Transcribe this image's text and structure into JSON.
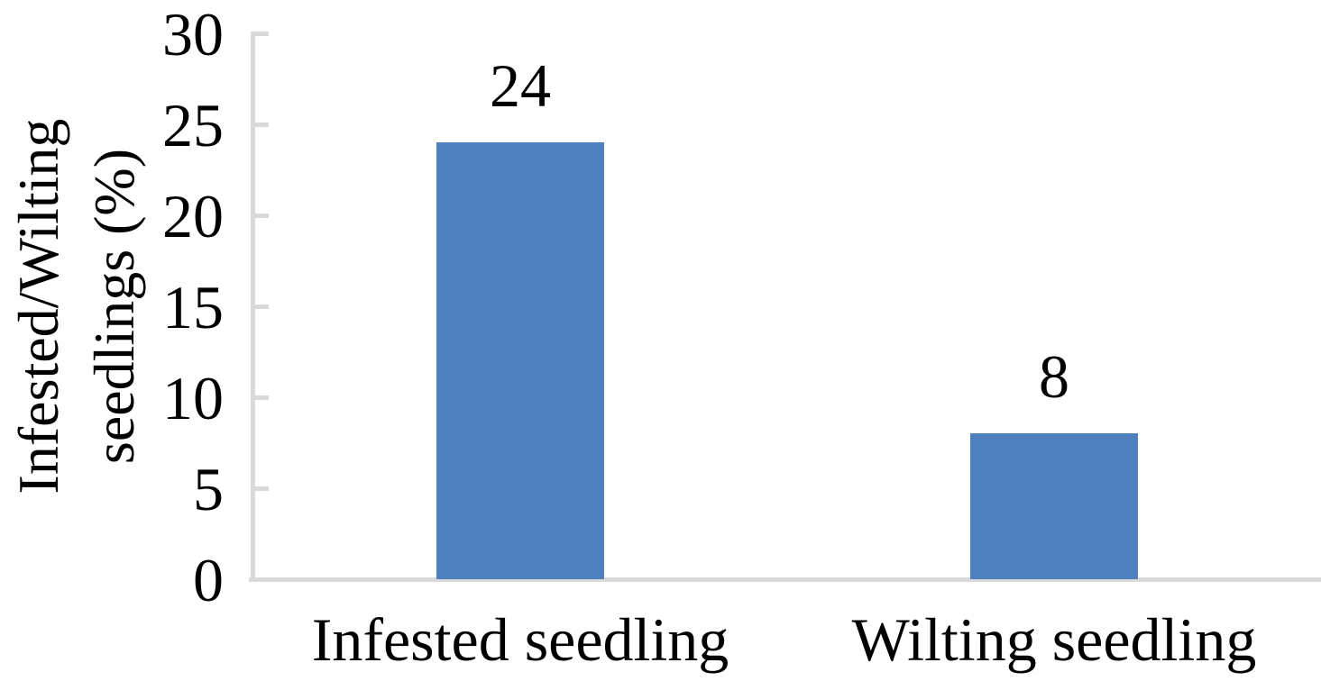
{
  "chart_data": {
    "type": "bar",
    "title": "",
    "xlabel": "",
    "ylabel": "Infested/Wilting seedlings (%)",
    "ylabel_lines": [
      "Infested/Wilting",
      "seedlings (%)"
    ],
    "categories": [
      "Infested seedling",
      "Wilting seedling"
    ],
    "values": [
      24,
      8
    ],
    "data_labels": [
      "24",
      "8"
    ],
    "yticks": [
      0,
      5,
      10,
      15,
      20,
      25,
      30
    ],
    "ylim": [
      0,
      30
    ],
    "grid": false,
    "legend": false,
    "colors": {
      "bar_fill": "#4e80bd",
      "axis_line": "#d9d9d9",
      "text": "#000000",
      "background": "#ffffff"
    }
  }
}
